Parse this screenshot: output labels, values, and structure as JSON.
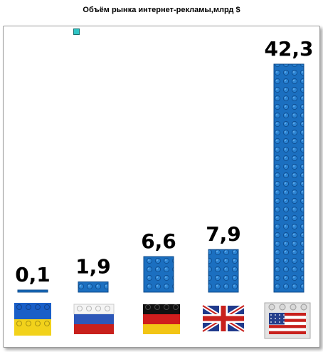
{
  "chart_data": {
    "type": "bar",
    "title": "Объём рынка интернет-рекламы,млрд $",
    "categories": [
      "Украина",
      "Россия",
      "Германия",
      "Великобритания",
      "США"
    ],
    "values": [
      0.1,
      1.9,
      6.6,
      7.9,
      42.3
    ],
    "value_labels": [
      "0,1",
      "1,9",
      "6,6",
      "7,9",
      "42,3"
    ],
    "flag_icons": [
      "ukraine-flag-icon",
      "russia-flag-icon",
      "germany-flag-icon",
      "uk-flag-icon",
      "usa-flag-icon"
    ],
    "xlabel": "",
    "ylabel": "",
    "ylim": [
      0,
      42.3
    ],
    "grid": false,
    "bar_color": "#1b6fc0"
  }
}
